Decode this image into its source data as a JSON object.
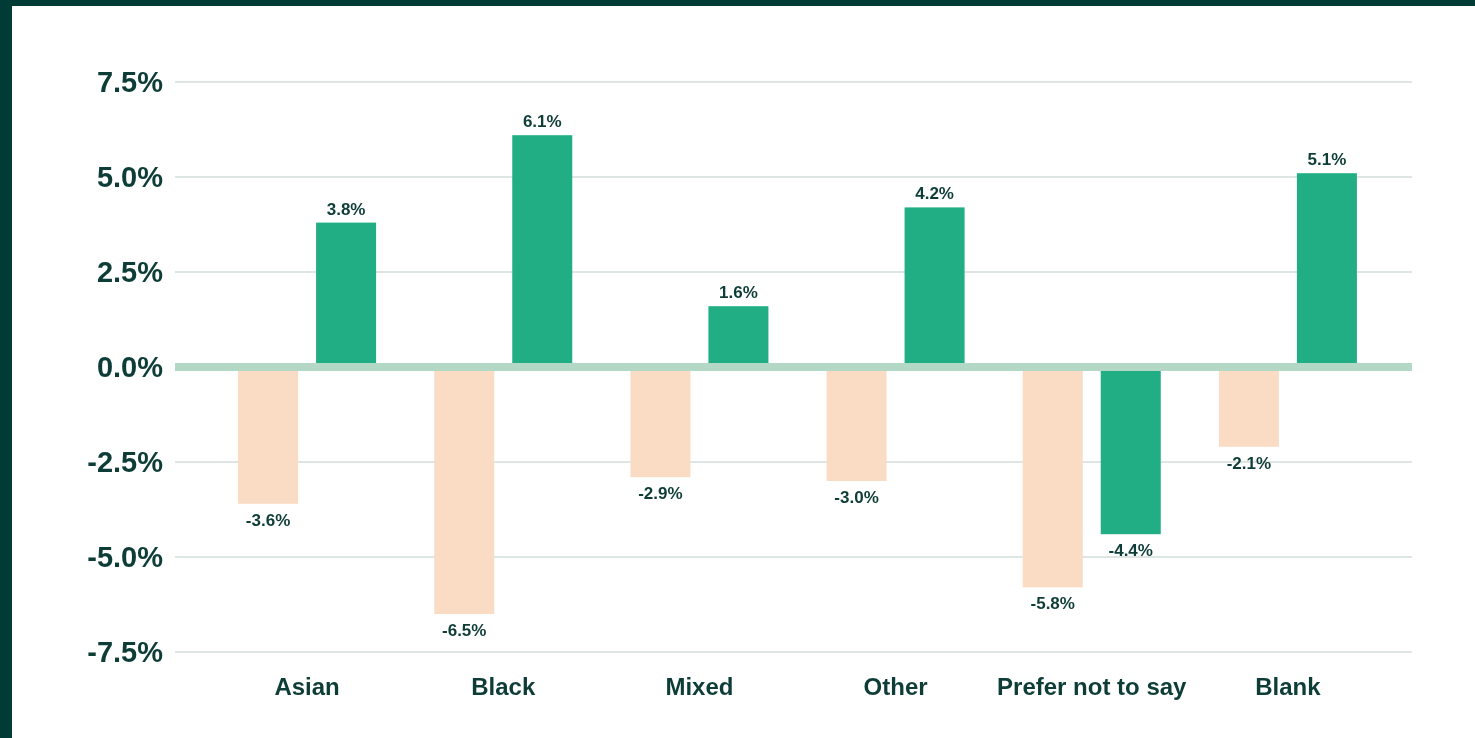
{
  "chart_data": {
    "type": "bar",
    "categories": [
      "Asian",
      "Black",
      "Mixed",
      "Other",
      "Prefer not to say",
      "Blank"
    ],
    "series": [
      {
        "color": "#fadcc5",
        "values": [
          -3.6,
          -6.5,
          -2.9,
          -3.0,
          -5.8,
          -2.1
        ],
        "value_labels": [
          "-3.6%",
          "-6.5%",
          "-2.9%",
          "-3.0%",
          "-5.8%",
          "-2.1%"
        ]
      },
      {
        "color": "#21ae84",
        "values": [
          3.8,
          6.1,
          1.6,
          4.2,
          -4.4,
          5.1
        ],
        "value_labels": [
          "3.8%",
          "6.1%",
          "1.6%",
          "4.2%",
          "-4.4%",
          "5.1%"
        ]
      }
    ],
    "ylim": [
      -7.5,
      7.5
    ],
    "yticks": [
      {
        "value": -7.5,
        "label": "-7.5%"
      },
      {
        "value": -5,
        "label": "-5.0%"
      },
      {
        "value": -2.5,
        "label": "-2.5%"
      },
      {
        "value": 0,
        "label": "0.0%"
      },
      {
        "value": 2.5,
        "label": "2.5%"
      },
      {
        "value": 5,
        "label": "5.0%"
      },
      {
        "value": 7.5,
        "label": "7.5%"
      }
    ],
    "grid": "y"
  }
}
